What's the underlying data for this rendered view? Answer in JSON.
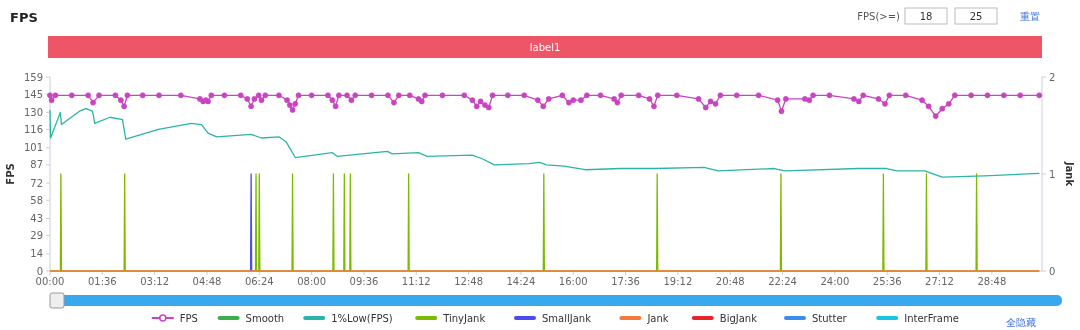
{
  "chart_data": {
    "type": "line",
    "title": "FPS",
    "ylabel": "FPS",
    "y2label": "Jank",
    "annotations": [
      "FPS(>=)",
      "18",
      "25",
      "重置",
      "label1",
      "全隐藏"
    ],
    "xlim": [
      0,
      1820
    ],
    "xticks": [
      {
        "value": 0,
        "label": "00:00"
      },
      {
        "value": 96,
        "label": "01:36"
      },
      {
        "value": 192,
        "label": "03:12"
      },
      {
        "value": 288,
        "label": "04:48"
      },
      {
        "value": 384,
        "label": "06:24"
      },
      {
        "value": 480,
        "label": "08:00"
      },
      {
        "value": 576,
        "label": "09:36"
      },
      {
        "value": 672,
        "label": "11:12"
      },
      {
        "value": 768,
        "label": "12:48"
      },
      {
        "value": 864,
        "label": "14:24"
      },
      {
        "value": 960,
        "label": "16:00"
      },
      {
        "value": 1056,
        "label": "17:36"
      },
      {
        "value": 1152,
        "label": "19:12"
      },
      {
        "value": 1248,
        "label": "20:48"
      },
      {
        "value": 1344,
        "label": "22:24"
      },
      {
        "value": 1440,
        "label": "24:00"
      },
      {
        "value": 1536,
        "label": "25:36"
      },
      {
        "value": 1632,
        "label": "27:12"
      },
      {
        "value": 1728,
        "label": "28:48"
      }
    ],
    "ylim": [
      0,
      159
    ],
    "yticks": [
      0,
      14,
      29,
      43,
      58,
      72,
      87,
      101,
      116,
      130,
      145,
      159
    ],
    "y2lim": [
      0,
      2
    ],
    "y2ticks": [
      0,
      1,
      2
    ],
    "grid": false,
    "legend": "bottom",
    "line_style": "solid",
    "series": [
      {
        "name": "FPS",
        "color": "#c944c0",
        "marker": "circle",
        "axis": "y",
        "x": [
          0,
          3,
          10,
          40,
          70,
          79,
          90,
          120,
          130,
          136,
          142,
          170,
          200,
          240,
          275,
          281,
          286,
          290,
          296,
          320,
          350,
          362,
          369,
          375,
          383,
          388,
          395,
          420,
          435,
          440,
          445,
          450,
          456,
          480,
          510,
          518,
          524,
          530,
          545,
          553,
          560,
          590,
          620,
          631,
          640,
          660,
          676,
          682,
          688,
          720,
          760,
          775,
          783,
          790,
          798,
          805,
          812,
          840,
          870,
          895,
          905,
          915,
          940,
          952,
          960,
          974,
          985,
          1010,
          1035,
          1041,
          1048,
          1080,
          1100,
          1108,
          1115,
          1150,
          1190,
          1203,
          1212,
          1221,
          1230,
          1260,
          1300,
          1335,
          1342,
          1350,
          1385,
          1393,
          1400,
          1430,
          1475,
          1484,
          1492,
          1520,
          1532,
          1540,
          1570,
          1600,
          1612,
          1625,
          1637,
          1649,
          1660,
          1690,
          1720,
          1750,
          1780,
          1815
        ],
        "values": [
          144,
          140,
          144,
          144,
          144,
          138,
          144,
          144,
          140,
          135,
          144,
          144,
          144,
          144,
          141,
          139,
          140,
          139,
          144,
          144,
          144,
          141,
          135,
          141,
          144,
          140,
          144,
          144,
          140,
          136,
          132,
          137,
          144,
          144,
          144,
          140,
          135,
          144,
          144,
          140,
          144,
          144,
          144,
          138,
          144,
          144,
          141,
          139,
          144,
          144,
          144,
          140,
          135,
          139,
          136,
          134,
          144,
          144,
          144,
          140,
          135,
          141,
          144,
          138,
          140,
          140,
          144,
          144,
          141,
          138,
          144,
          144,
          141,
          135,
          144,
          144,
          141,
          134,
          139,
          137,
          144,
          144,
          144,
          140,
          131,
          141,
          141,
          140,
          144,
          144,
          141,
          139,
          144,
          141,
          137,
          144,
          144,
          140,
          135,
          127,
          133,
          137,
          144,
          144,
          144,
          144,
          144,
          144
        ]
      },
      {
        "name": "Smooth",
        "color": "#3dae49",
        "marker": "none",
        "axis": "y2"
      },
      {
        "name": "1%Low(FPS)",
        "color": "#2bb5a8",
        "marker": "none",
        "axis": "y",
        "x": [
          0,
          1,
          19,
          21,
          54,
          66,
          78,
          82,
          110,
          133,
          139,
          199,
          259,
          278,
          290,
          306,
          369,
          388,
          420,
          433,
          450,
          518,
          527,
          619,
          628,
          676,
          692,
          774,
          793,
          815,
          879,
          898,
          911,
          943,
          982,
          1046,
          1110,
          1200,
          1226,
          1329,
          1348,
          1483,
          1535,
          1554,
          1605,
          1637,
          1714,
          1815
        ],
        "values": [
          132,
          109,
          130,
          120,
          131,
          133,
          131,
          121,
          126,
          124,
          108,
          116,
          121,
          120,
          113,
          110,
          112,
          109,
          110,
          106,
          93,
          97,
          94,
          98,
          96,
          97,
          94,
          95,
          92,
          87,
          88,
          89,
          87,
          86,
          83,
          84,
          84,
          85,
          82,
          84,
          82,
          84,
          84,
          82,
          82,
          77,
          78,
          80
        ]
      },
      {
        "name": "TinyJank",
        "color": "#7dbb00",
        "marker": "none",
        "axis": "y2",
        "x": [
          0,
          19,
          20,
          21,
          136,
          137,
          138,
          377,
          378,
          379,
          383,
          384,
          385,
          444,
          445,
          446,
          519,
          520,
          521,
          539,
          540,
          541,
          550,
          551,
          552,
          657,
          658,
          659,
          905,
          906,
          907,
          1113,
          1114,
          1115,
          1340,
          1341,
          1342,
          1528,
          1529,
          1530,
          1607,
          1608,
          1609,
          1699,
          1700,
          1701,
          1815
        ],
        "values": [
          0,
          0,
          1,
          0,
          0,
          1,
          0,
          0,
          1,
          0,
          0,
          1,
          0,
          0,
          1,
          0,
          0,
          1,
          0,
          0,
          1,
          0,
          0,
          1,
          0,
          0,
          1,
          0,
          0,
          1,
          0,
          0,
          1,
          0,
          0,
          1,
          0,
          0,
          1,
          0,
          0,
          1,
          0,
          0,
          1,
          0,
          0
        ]
      },
      {
        "name": "SmallJank",
        "color": "#4a4af0",
        "marker": "none",
        "axis": "y2",
        "x": [
          368,
          369,
          370
        ],
        "values": [
          0,
          1,
          0
        ]
      },
      {
        "name": "Jank",
        "color": "#f47a3c",
        "marker": "none",
        "axis": "y2",
        "x": [
          0,
          1815
        ],
        "values": [
          0,
          0
        ]
      },
      {
        "name": "BigJank",
        "color": "#e8242b",
        "marker": "none",
        "axis": "y2"
      },
      {
        "name": "Stutter",
        "color": "#3b8de8",
        "marker": "none",
        "axis": "y2"
      },
      {
        "name": "InterFrame",
        "color": "#17c5e0",
        "marker": "none",
        "axis": "y2"
      }
    ]
  }
}
